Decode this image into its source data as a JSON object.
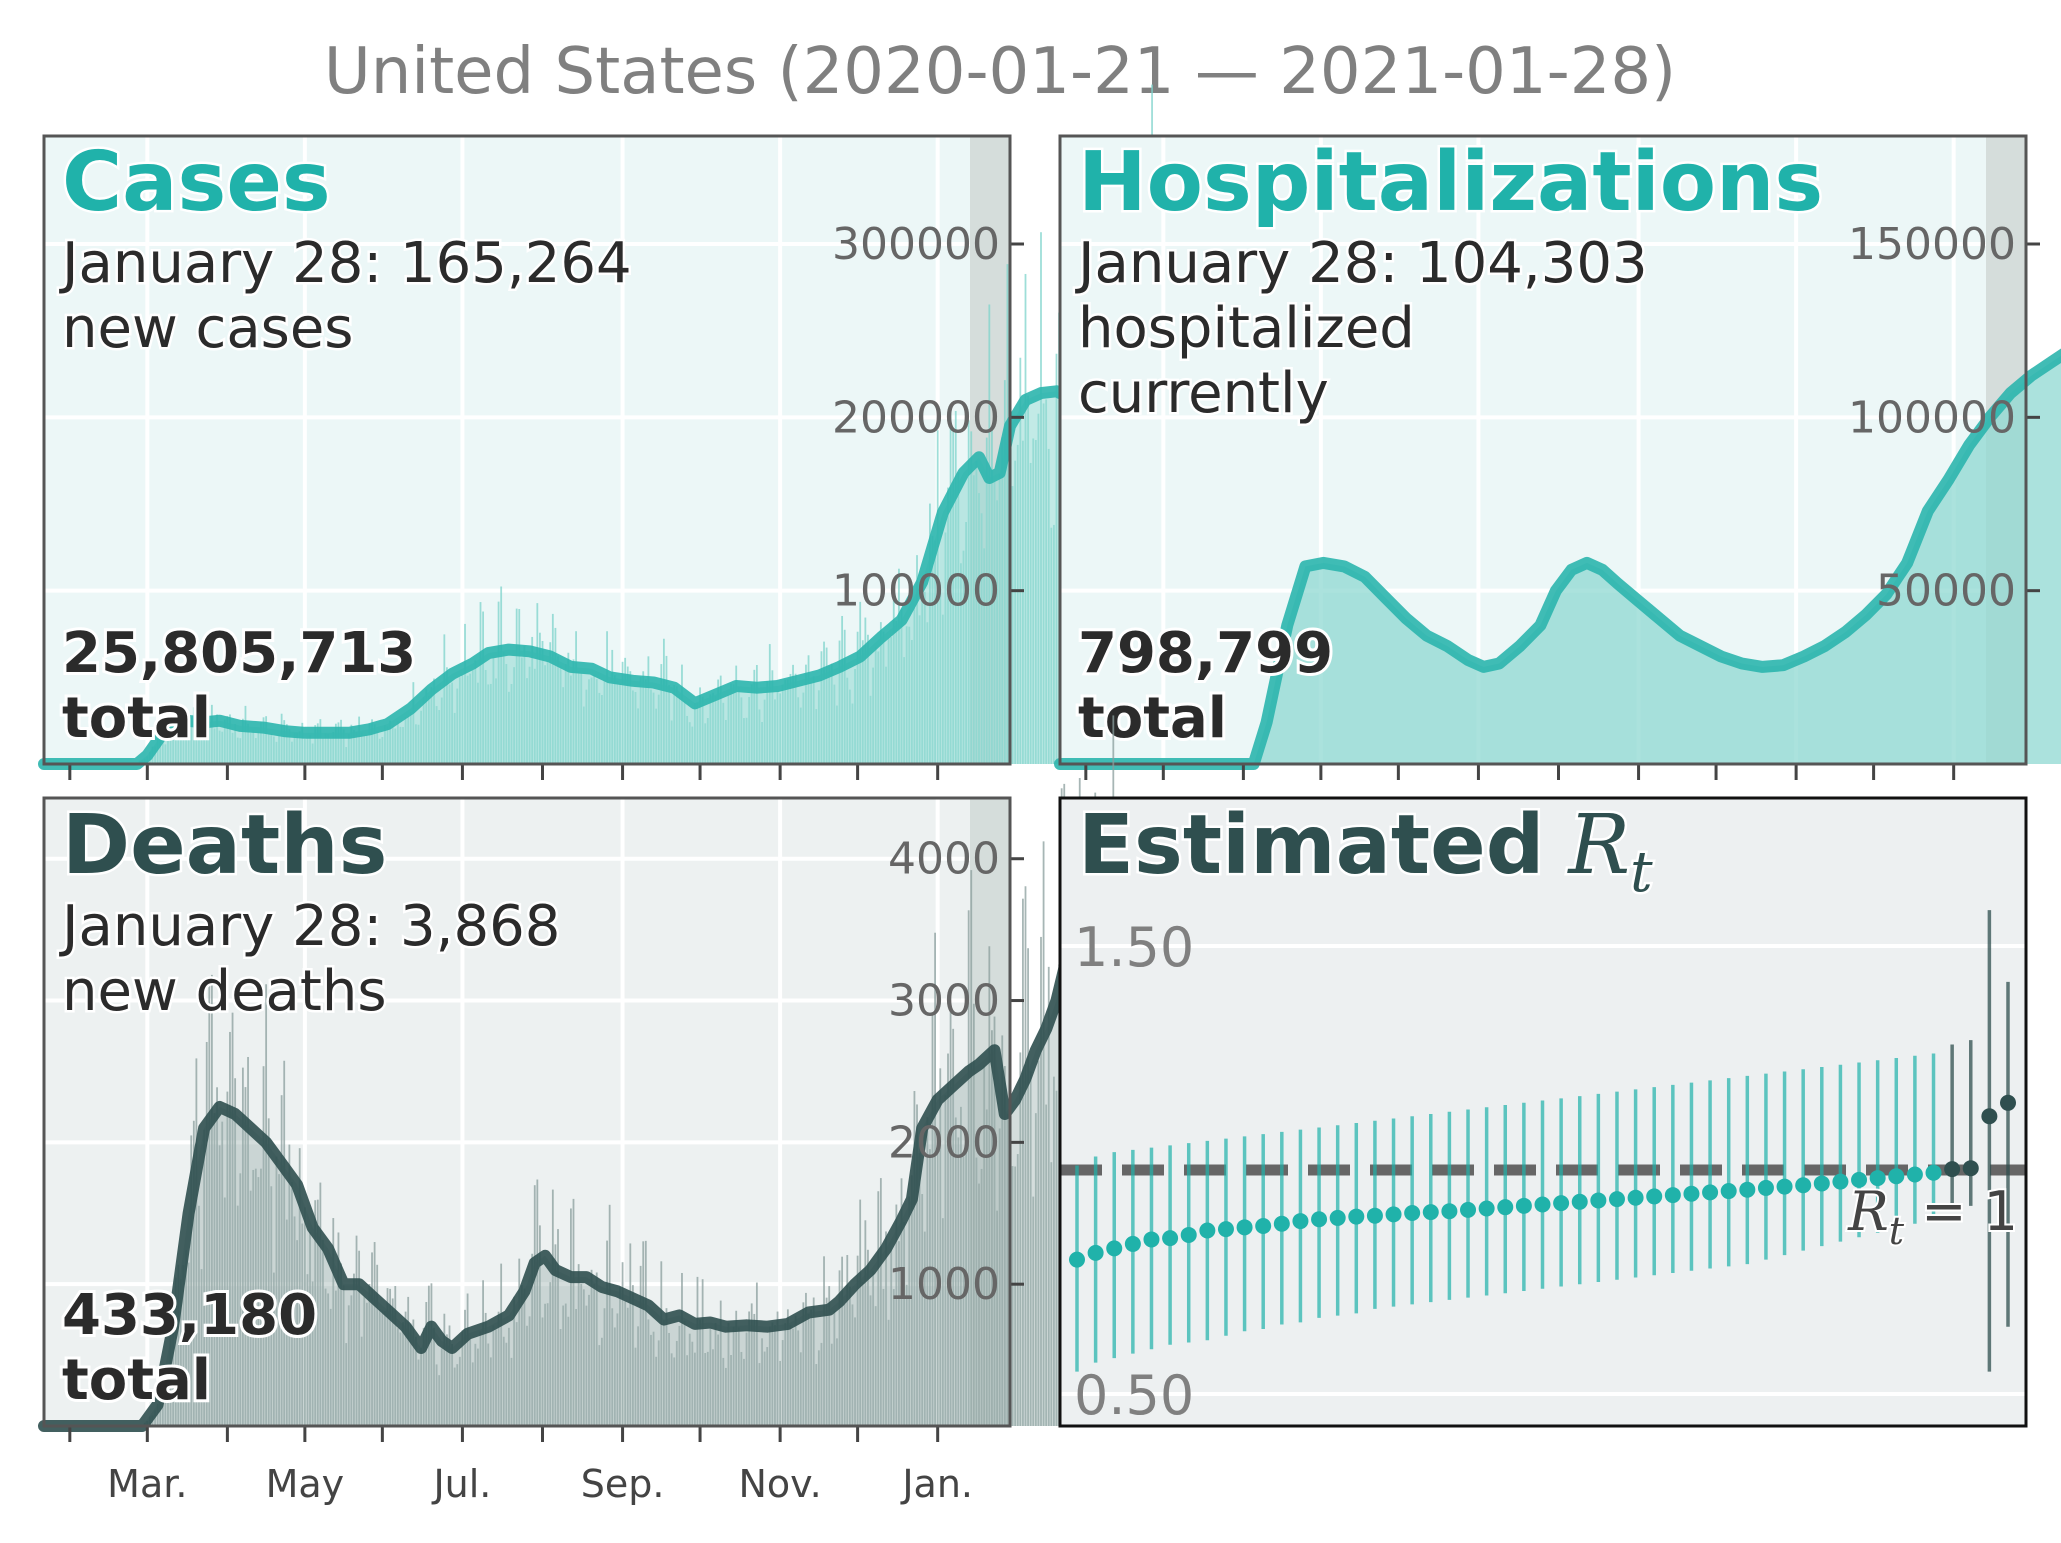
{
  "title": "United States (2020-01-21 — 2021-01-28)",
  "months": [
    "Mar.",
    "May",
    "Jul.",
    "Sep.",
    "Nov.",
    "Jan."
  ],
  "colors": {
    "teal": "#20b2aa",
    "dark": "#2f4f4f",
    "gray": "#808080"
  },
  "chart_data": [
    {
      "type": "bar",
      "title": "Cases",
      "annotation": [
        "January 28: 165,264",
        "new cases"
      ],
      "total_value": "25,805,713",
      "total_word": "total",
      "ylim": [
        0,
        300000
      ],
      "yticks": [
        100000,
        200000,
        300000
      ],
      "ytick_labels": [
        "100000",
        "200000",
        "300000"
      ],
      "smoothed": [
        [
          0,
          0
        ],
        [
          36,
          0
        ],
        [
          40,
          5000
        ],
        [
          48,
          22000
        ],
        [
          55,
          25000
        ],
        [
          62,
          24000
        ],
        [
          68,
          25000
        ],
        [
          76,
          22000
        ],
        [
          85,
          21000
        ],
        [
          93,
          19000
        ],
        [
          101,
          18000
        ],
        [
          110,
          18000
        ],
        [
          118,
          18000
        ],
        [
          126,
          20000
        ],
        [
          133,
          23000
        ],
        [
          142,
          32000
        ],
        [
          150,
          43000
        ],
        [
          158,
          52000
        ],
        [
          166,
          58000
        ],
        [
          172,
          64000
        ],
        [
          180,
          66000
        ],
        [
          188,
          65000
        ],
        [
          196,
          62000
        ],
        [
          204,
          56000
        ],
        [
          212,
          55000
        ],
        [
          219,
          50000
        ],
        [
          228,
          48000
        ],
        [
          236,
          47000
        ],
        [
          244,
          44000
        ],
        [
          252,
          35000
        ],
        [
          260,
          40000
        ],
        [
          268,
          45000
        ],
        [
          276,
          44000
        ],
        [
          284,
          45000
        ],
        [
          292,
          48000
        ],
        [
          300,
          51000
        ],
        [
          308,
          56000
        ],
        [
          316,
          62000
        ],
        [
          324,
          73000
        ],
        [
          332,
          83000
        ],
        [
          340,
          105000
        ],
        [
          348,
          145000
        ],
        [
          356,
          168000
        ],
        [
          362,
          177000
        ],
        [
          366,
          165000
        ],
        [
          370,
          168000
        ],
        [
          374,
          195000
        ],
        [
          380,
          210000
        ],
        [
          386,
          214000
        ],
        [
          392,
          215000
        ],
        [
          396,
          212000
        ],
        [
          400,
          200000
        ],
        [
          404,
          205000
        ],
        [
          408,
          208000
        ],
        [
          412,
          215000
        ],
        [
          416,
          228000
        ],
        [
          420,
          245000
        ],
        [
          424,
          252000
        ],
        [
          428,
          248000
        ],
        [
          432,
          242000
        ],
        [
          436,
          222000
        ],
        [
          440,
          195000
        ],
        [
          444,
          178000
        ],
        [
          448,
          170000
        ],
        [
          452,
          162000
        ],
        [
          455,
          158000
        ]
      ]
    },
    {
      "type": "bar",
      "title": "Hospitalizations",
      "annotation": [
        "January 28: 104,303",
        "hospitalized",
        "currently"
      ],
      "total_value": "798,799",
      "total_word": "total",
      "ylim": [
        0,
        150000
      ],
      "yticks": [
        50000,
        100000,
        150000
      ],
      "ytick_labels": [
        "50000",
        "100000",
        "150000"
      ],
      "smoothed": [
        [
          0,
          0
        ],
        [
          75,
          0
        ],
        [
          80,
          12000
        ],
        [
          88,
          40000
        ],
        [
          95,
          57000
        ],
        [
          102,
          58000
        ],
        [
          110,
          57000
        ],
        [
          118,
          54000
        ],
        [
          126,
          48000
        ],
        [
          134,
          42000
        ],
        [
          142,
          37000
        ],
        [
          150,
          34000
        ],
        [
          158,
          30000
        ],
        [
          164,
          28000
        ],
        [
          170,
          29000
        ],
        [
          178,
          34000
        ],
        [
          186,
          40000
        ],
        [
          192,
          50000
        ],
        [
          198,
          56000
        ],
        [
          204,
          58000
        ],
        [
          210,
          56000
        ],
        [
          216,
          52000
        ],
        [
          224,
          47000
        ],
        [
          232,
          42000
        ],
        [
          240,
          37000
        ],
        [
          248,
          34000
        ],
        [
          256,
          31000
        ],
        [
          264,
          29000
        ],
        [
          272,
          28000
        ],
        [
          280,
          28500
        ],
        [
          288,
          31000
        ],
        [
          296,
          34000
        ],
        [
          304,
          38000
        ],
        [
          312,
          43000
        ],
        [
          320,
          49000
        ],
        [
          328,
          58000
        ],
        [
          336,
          73000
        ],
        [
          344,
          82000
        ],
        [
          352,
          92000
        ],
        [
          360,
          100000
        ],
        [
          368,
          107000
        ],
        [
          376,
          112000
        ],
        [
          384,
          116000
        ],
        [
          392,
          120000
        ],
        [
          400,
          123000
        ],
        [
          406,
          126000
        ],
        [
          412,
          128000
        ],
        [
          418,
          126500
        ],
        [
          424,
          120000
        ],
        [
          430,
          110000
        ],
        [
          434,
          104000
        ]
      ]
    },
    {
      "type": "bar",
      "title": "Deaths",
      "annotation": [
        "January 28: 3,868",
        "new deaths"
      ],
      "total_value": "433,180",
      "total_word": "total",
      "ylim": [
        0,
        4000
      ],
      "yticks": [
        1000,
        2000,
        3000,
        4000
      ],
      "ytick_labels": [
        "1000",
        "2000",
        "3000",
        "4000"
      ],
      "smoothed": [
        [
          0,
          0
        ],
        [
          38,
          0
        ],
        [
          44,
          150
        ],
        [
          50,
          700
        ],
        [
          56,
          1500
        ],
        [
          62,
          2100
        ],
        [
          68,
          2250
        ],
        [
          74,
          2200
        ],
        [
          80,
          2100
        ],
        [
          86,
          2000
        ],
        [
          92,
          1850
        ],
        [
          98,
          1700
        ],
        [
          104,
          1400
        ],
        [
          110,
          1250
        ],
        [
          116,
          1000
        ],
        [
          122,
          1000
        ],
        [
          128,
          900
        ],
        [
          134,
          800
        ],
        [
          140,
          700
        ],
        [
          146,
          550
        ],
        [
          150,
          700
        ],
        [
          154,
          600
        ],
        [
          158,
          550
        ],
        [
          164,
          650
        ],
        [
          172,
          700
        ],
        [
          180,
          780
        ],
        [
          186,
          950
        ],
        [
          190,
          1150
        ],
        [
          194,
          1200
        ],
        [
          198,
          1100
        ],
        [
          204,
          1050
        ],
        [
          210,
          1050
        ],
        [
          216,
          980
        ],
        [
          222,
          950
        ],
        [
          228,
          900
        ],
        [
          234,
          850
        ],
        [
          240,
          750
        ],
        [
          246,
          780
        ],
        [
          252,
          720
        ],
        [
          258,
          730
        ],
        [
          264,
          700
        ],
        [
          272,
          710
        ],
        [
          280,
          700
        ],
        [
          288,
          720
        ],
        [
          296,
          800
        ],
        [
          304,
          820
        ],
        [
          308,
          880
        ],
        [
          314,
          1000
        ],
        [
          320,
          1100
        ],
        [
          326,
          1250
        ],
        [
          332,
          1450
        ],
        [
          336,
          1600
        ],
        [
          340,
          2100
        ],
        [
          346,
          2300
        ],
        [
          352,
          2400
        ],
        [
          358,
          2500
        ],
        [
          362,
          2550
        ],
        [
          368,
          2650
        ],
        [
          372,
          2200
        ],
        [
          376,
          2300
        ],
        [
          380,
          2450
        ],
        [
          384,
          2650
        ],
        [
          388,
          2800
        ],
        [
          392,
          3000
        ],
        [
          396,
          3300
        ],
        [
          400,
          3350
        ],
        [
          404,
          3100
        ],
        [
          408,
          3150
        ],
        [
          412,
          3300
        ],
        [
          416,
          3250
        ]
      ]
    },
    {
      "type": "scatter",
      "title": "Estimated R_t",
      "title_text": "Estimated",
      "title_symbol": "R",
      "title_sub": "t",
      "ylim": [
        0.5,
        1.5
      ],
      "yticks": [
        0.5,
        1.5
      ],
      "ytick_labels": [
        "0.50",
        "1.50"
      ],
      "reference_line": {
        "y": 1.0,
        "label_symbol": "R",
        "label_sub": "t",
        "label_rest": " = 1"
      },
      "estimates": [
        0.8,
        0.815,
        0.825,
        0.835,
        0.845,
        0.848,
        0.855,
        0.865,
        0.868,
        0.872,
        0.875,
        0.88,
        0.886,
        0.89,
        0.893,
        0.896,
        0.898,
        0.901,
        0.904,
        0.906,
        0.908,
        0.911,
        0.914,
        0.917,
        0.92,
        0.923,
        0.926,
        0.929,
        0.932,
        0.935,
        0.938,
        0.941,
        0.944,
        0.947,
        0.95,
        0.953,
        0.956,
        0.96,
        0.963,
        0.966,
        0.97,
        0.974,
        0.978,
        0.982,
        0.986,
        0.99,
        0.994,
        1.002,
        1.004,
        1.12,
        1.15
      ],
      "lower": [
        0.55,
        0.57,
        0.58,
        0.59,
        0.6,
        0.61,
        0.615,
        0.62,
        0.63,
        0.64,
        0.645,
        0.655,
        0.66,
        0.67,
        0.675,
        0.68,
        0.69,
        0.695,
        0.7,
        0.705,
        0.71,
        0.715,
        0.72,
        0.725,
        0.73,
        0.735,
        0.74,
        0.745,
        0.75,
        0.755,
        0.76,
        0.765,
        0.77,
        0.775,
        0.78,
        0.785,
        0.79,
        0.8,
        0.81,
        0.82,
        0.83,
        0.84,
        0.85,
        0.86,
        0.87,
        0.88,
        0.89,
        0.91,
        0.92,
        0.55,
        0.65
      ],
      "upper": [
        1.01,
        1.03,
        1.04,
        1.045,
        1.05,
        1.055,
        1.06,
        1.065,
        1.07,
        1.075,
        1.08,
        1.085,
        1.09,
        1.095,
        1.1,
        1.105,
        1.11,
        1.115,
        1.12,
        1.125,
        1.13,
        1.135,
        1.14,
        1.145,
        1.15,
        1.155,
        1.16,
        1.165,
        1.17,
        1.175,
        1.18,
        1.185,
        1.19,
        1.195,
        1.2,
        1.205,
        1.21,
        1.215,
        1.22,
        1.225,
        1.23,
        1.235,
        1.24,
        1.245,
        1.25,
        1.255,
        1.26,
        1.28,
        1.29,
        1.58,
        1.42
      ]
    }
  ]
}
